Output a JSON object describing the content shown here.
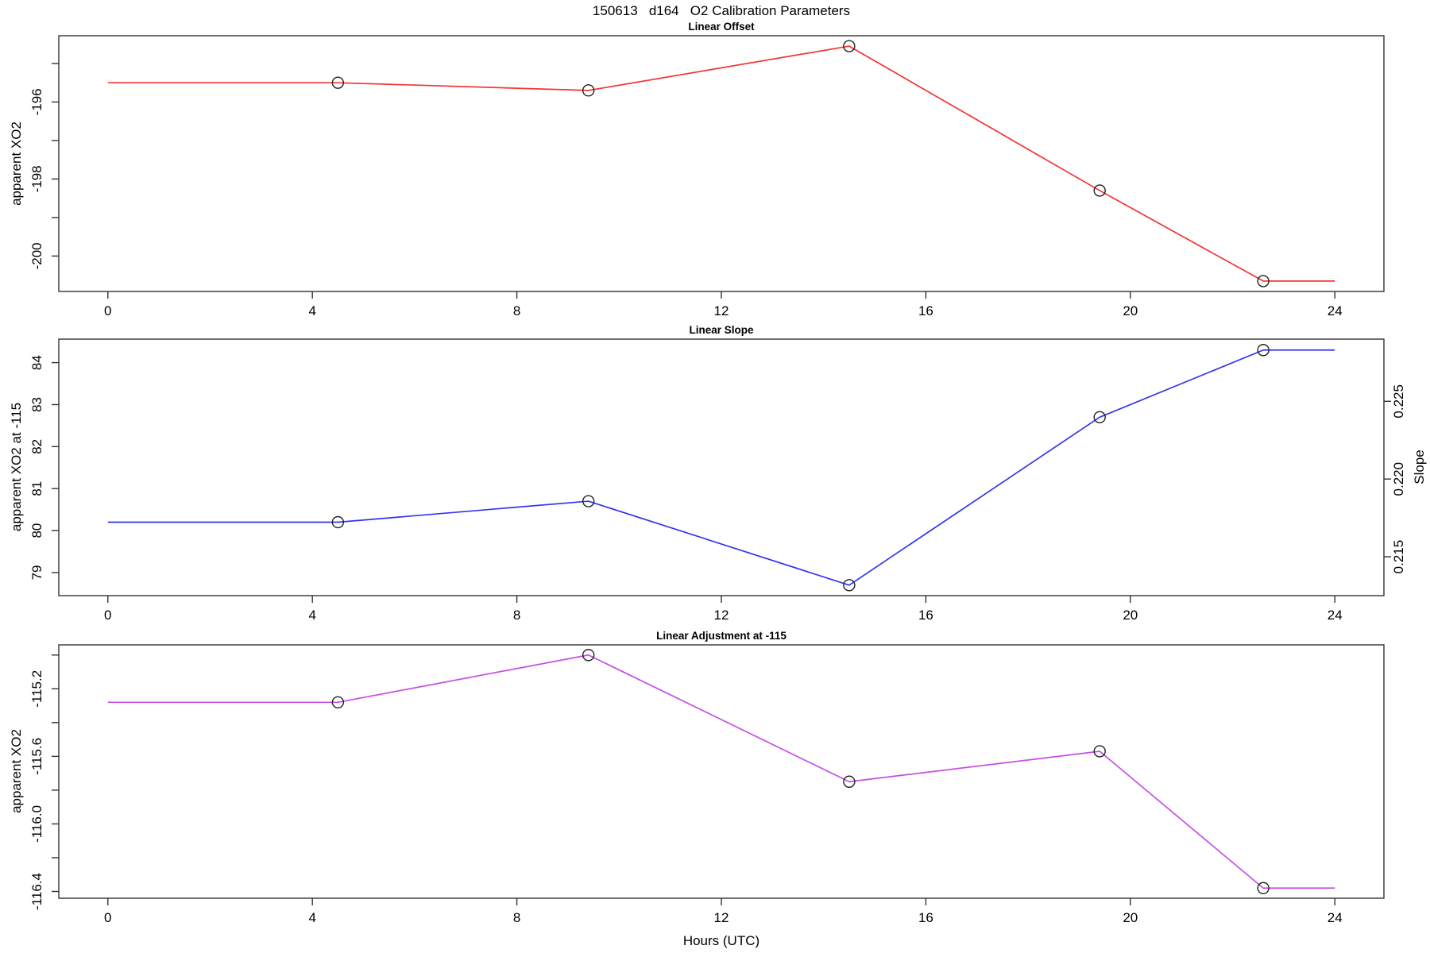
{
  "title": "150613   d164   O2 Calibration Parameters",
  "xlabel": "Hours (UTC)",
  "chart_data": [
    {
      "type": "line",
      "title": "Linear Offset",
      "ylabel": "apparent XO2",
      "line_color": "#f53333",
      "marker": "open-circle",
      "x": [
        4.5,
        9.4,
        14.5,
        19.4,
        22.6
      ],
      "y": [
        -195.5,
        -195.7,
        -194.55,
        -198.3,
        -200.65
      ],
      "line_x": [
        0,
        4.5,
        9.4,
        14.5,
        19.4,
        22.6,
        24
      ],
      "line_y": [
        -195.5,
        -195.5,
        -195.7,
        -194.55,
        -198.3,
        -200.65,
        -200.65
      ],
      "xlim": [
        -0.96,
        24.96
      ],
      "ylim": [
        -200.92,
        -194.28
      ],
      "xticks": {
        "values": [
          0,
          4,
          8,
          12,
          16,
          20,
          24
        ],
        "labels": [
          "0",
          "4",
          "8",
          "12",
          "16",
          "20",
          "24"
        ]
      },
      "yticks": {
        "values": [
          -196,
          -198,
          -200
        ],
        "labels": [
          "-196",
          "-198",
          "-200"
        ],
        "minor": [
          -195,
          -197,
          -199
        ]
      },
      "grid": false,
      "legend": null
    },
    {
      "type": "line",
      "title": "Linear Slope",
      "ylabel": "apparent XO2 at -115",
      "line_color": "#3333f0",
      "marker": "open-circle",
      "x": [
        4.5,
        9.4,
        14.5,
        19.4,
        22.6
      ],
      "y": [
        80.2,
        80.7,
        78.7,
        82.7,
        84.3
      ],
      "line_x": [
        0,
        4.5,
        9.4,
        14.5,
        19.4,
        22.6,
        24
      ],
      "line_y": [
        80.2,
        80.2,
        80.7,
        78.7,
        82.7,
        84.3,
        84.3
      ],
      "xlim": [
        -0.96,
        24.96
      ],
      "ylim": [
        78.45,
        84.56
      ],
      "xticks": {
        "values": [
          0,
          4,
          8,
          12,
          16,
          20,
          24
        ],
        "labels": [
          "0",
          "4",
          "8",
          "12",
          "16",
          "20",
          "24"
        ]
      },
      "yticks": {
        "values": [
          79,
          80,
          81,
          82,
          83,
          84
        ],
        "labels": [
          "79",
          "80",
          "81",
          "82",
          "83",
          "84"
        ],
        "minor": []
      },
      "right_axis": {
        "label": "Slope",
        "ylim": [
          0.2125,
          0.229
        ],
        "ticks": [
          0.215,
          0.22,
          0.225
        ],
        "labels": [
          "0.215",
          "0.220",
          "0.225"
        ]
      },
      "grid": false,
      "legend": null
    },
    {
      "type": "line",
      "title": "Linear Adjustment at -115",
      "ylabel": "apparent XO2",
      "line_color": "#c64ee4",
      "marker": "open-circle",
      "x": [
        4.5,
        9.4,
        14.5,
        19.4,
        22.6
      ],
      "y": [
        -115.28,
        -115.0,
        -115.75,
        -115.57,
        -116.38
      ],
      "line_x": [
        0,
        4.5,
        9.4,
        14.5,
        19.4,
        22.6,
        24
      ],
      "line_y": [
        -115.28,
        -115.28,
        -115.0,
        -115.75,
        -115.57,
        -116.38,
        -116.38
      ],
      "xlim": [
        -0.96,
        24.96
      ],
      "ylim": [
        -116.44,
        -114.94
      ],
      "xticks": {
        "values": [
          0,
          4,
          8,
          12,
          16,
          20,
          24
        ],
        "labels": [
          "0",
          "4",
          "8",
          "12",
          "16",
          "20",
          "24"
        ]
      },
      "yticks": {
        "values": [
          -115.2,
          -115.6,
          -116.0,
          -116.4
        ],
        "labels": [
          "-115.2",
          "-115.6",
          "-116.0",
          "-116.4"
        ],
        "minor": [
          -115.0,
          -115.4,
          -115.8,
          -116.2
        ]
      },
      "grid": false,
      "legend": null
    }
  ]
}
